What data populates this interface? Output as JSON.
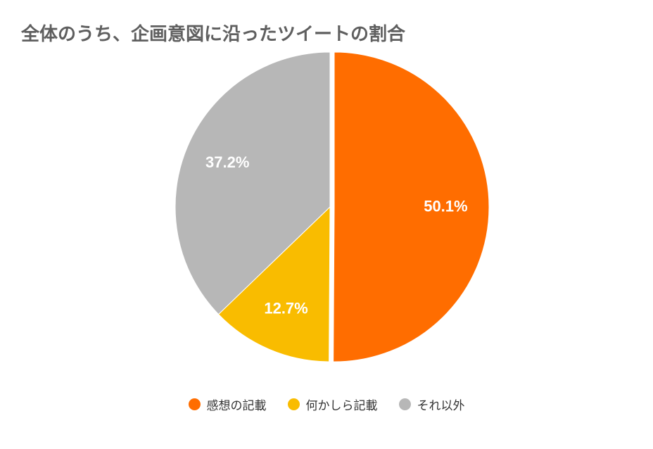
{
  "chart_data": {
    "type": "pie",
    "title": "全体のうち、企画意図に沿ったツイートの割合",
    "categories": [
      "感想の記載",
      "何かしら記載",
      "それ以外"
    ],
    "values": [
      50.1,
      12.7,
      37.2
    ],
    "labels": [
      "50.1%",
      "12.7%",
      "37.2%"
    ],
    "colors": [
      "#ff6d00",
      "#f9bc00",
      "#b7b7b7"
    ],
    "legend_position": "bottom",
    "exploded_slice": "感想の記載"
  },
  "legend": {
    "items": [
      {
        "label": "感想の記載",
        "color": "#ff6d00"
      },
      {
        "label": "何かしら記載",
        "color": "#f9bc00"
      },
      {
        "label": "それ以外",
        "color": "#b7b7b7"
      }
    ]
  }
}
